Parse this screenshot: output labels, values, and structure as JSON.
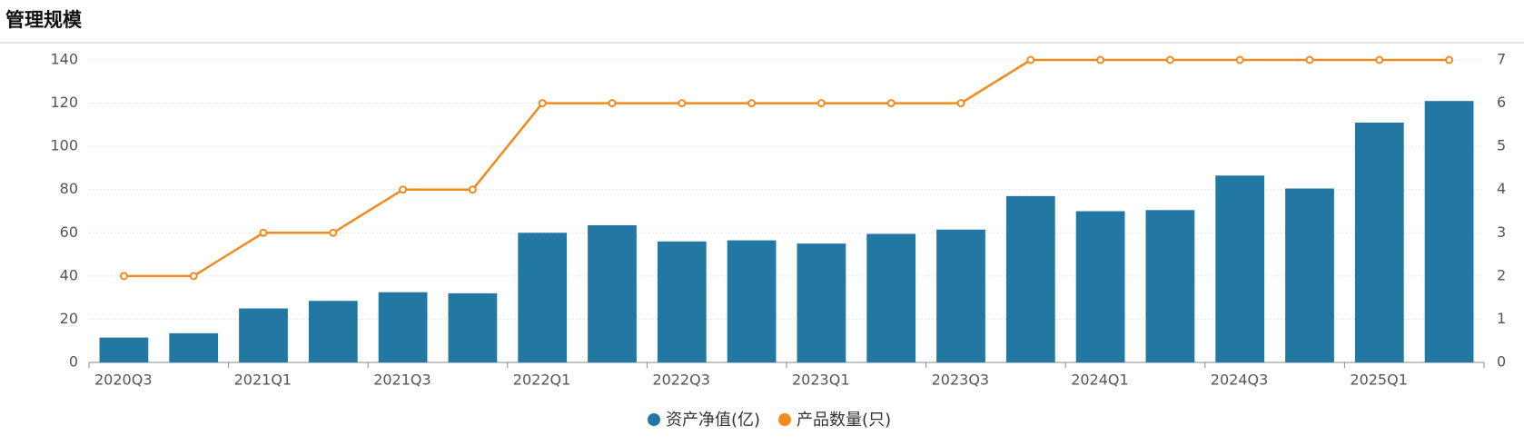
{
  "chart_data": {
    "type": "bar-line",
    "title": "管理规模",
    "categories": [
      "2020Q3",
      null,
      "2021Q1",
      null,
      "2021Q3",
      null,
      "2022Q1",
      null,
      "2022Q3",
      null,
      "2023Q1",
      null,
      "2023Q3",
      null,
      "2024Q1",
      null,
      "2024Q3",
      null,
      "2025Q1",
      null
    ],
    "series": [
      {
        "name": "资产净值(亿)",
        "color": "#2277a3",
        "type": "bar",
        "values": [
          11.5,
          13.5,
          25,
          28.5,
          32.5,
          32,
          60,
          63.5,
          56,
          56.5,
          55,
          59.5,
          61.5,
          77,
          70,
          70.5,
          86.5,
          80.5,
          111,
          121
        ]
      },
      {
        "name": "产品数量(只)",
        "color": "#f28a1e",
        "type": "line",
        "axis": "y2",
        "values": [
          2,
          2,
          3,
          3,
          4,
          4,
          6,
          6,
          6,
          6,
          6,
          6,
          6,
          7,
          7,
          7,
          7,
          7,
          7,
          7
        ]
      }
    ],
    "ylim": [
      0,
      140
    ],
    "yticks": [
      0,
      20,
      40,
      60,
      80,
      100,
      120,
      140
    ],
    "y2lim": [
      0,
      7
    ],
    "y2ticks": [
      0,
      1,
      2,
      3,
      4,
      5,
      6,
      7
    ],
    "grid": true
  }
}
